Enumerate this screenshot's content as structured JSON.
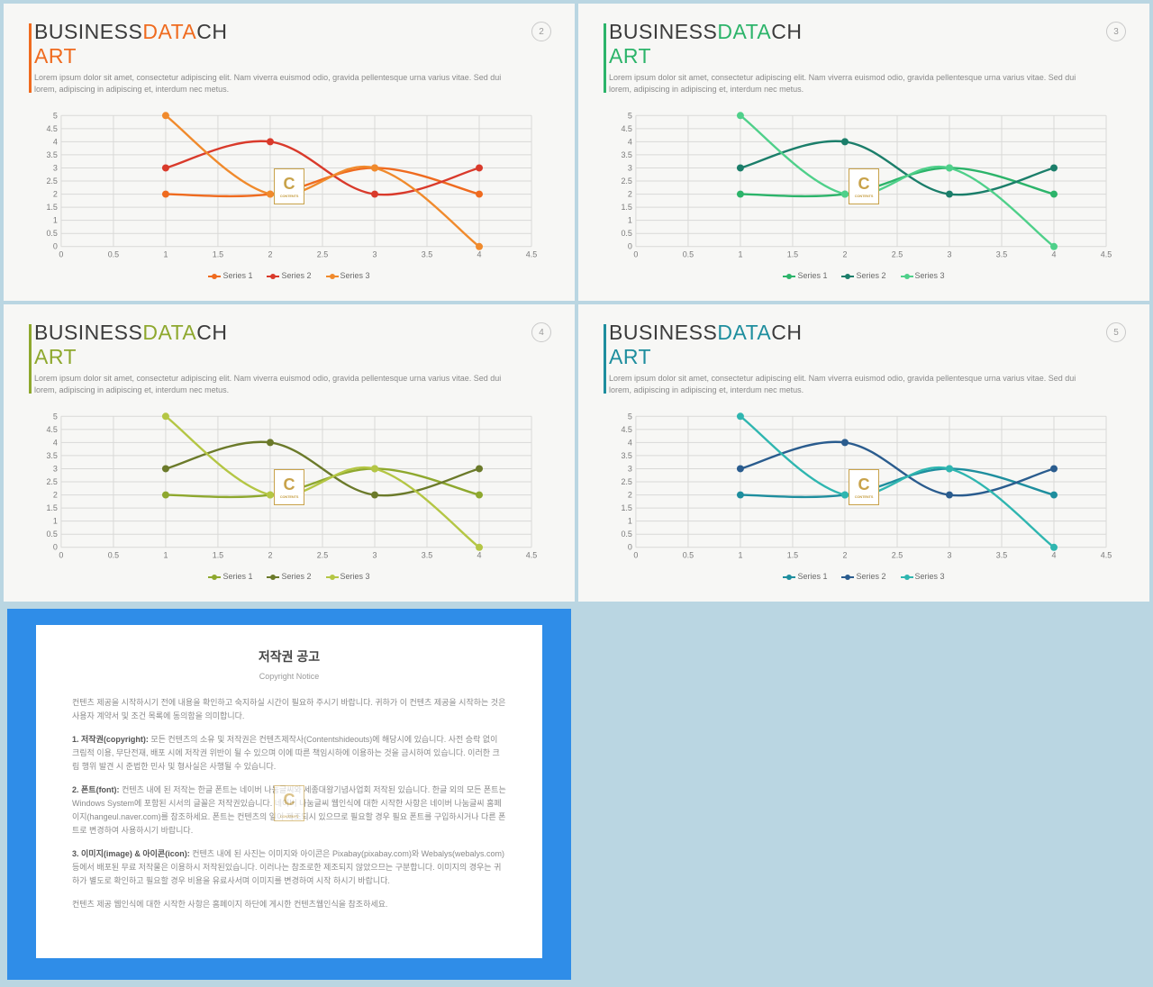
{
  "bg_color": "#bad6e2",
  "slide_bg": "#f7f7f5",
  "grid_color": "#d9d9d7",
  "axis_text_color": "#7a7a7a",
  "title_words": [
    "BUSINESS",
    "DATA",
    "CHART"
  ],
  "title_word1_color": "#3b3b3b",
  "title_fontsize": 23,
  "subtitle": "Lorem ipsum dolor sit amet, consectetur adipiscing elit. Nam viverra euismod odio, gravida pellentesque urna varius vitae. Sed dui lorem, adipiscing in adipiscing et, interdum nec metus.",
  "chart": {
    "type": "line",
    "xlim": [
      0,
      4.5
    ],
    "ylim": [
      0,
      5
    ],
    "xtick_step": 0.5,
    "ytick_step": 0.5,
    "series": [
      {
        "name": "Series 1",
        "x": [
          1,
          2,
          3,
          4
        ],
        "y": [
          2.0,
          2.0,
          3.0,
          2.0
        ]
      },
      {
        "name": "Series 2",
        "x": [
          1,
          2,
          3,
          4
        ],
        "y": [
          3.0,
          4.0,
          2.0,
          3.0
        ]
      },
      {
        "name": "Series 3",
        "x": [
          1,
          2,
          3,
          4
        ],
        "y": [
          5.0,
          2.0,
          3.0,
          0.0
        ]
      }
    ],
    "line_width": 2.4,
    "marker_radius": 4
  },
  "slides": [
    {
      "page": "2",
      "accent": "#ef6b1f",
      "series_colors": [
        "#ef6b1f",
        "#d93a2b",
        "#f08a2c"
      ]
    },
    {
      "page": "3",
      "accent": "#2cb46a",
      "series_colors": [
        "#2cb46a",
        "#1b7e6a",
        "#4fd08a"
      ]
    },
    {
      "page": "4",
      "accent": "#8ea82e",
      "series_colors": [
        "#8ea82e",
        "#6b7a2a",
        "#b4c644"
      ]
    },
    {
      "page": "5",
      "accent": "#1e8e9e",
      "series_colors": [
        "#1e8e9e",
        "#2a5c8e",
        "#2fb6b0"
      ]
    }
  ],
  "copyright": {
    "outer_color": "#2f8de8",
    "title": "저작권 공고",
    "subtitle": "Copyright Notice",
    "paragraphs": [
      "컨텐츠 제공을 시작하시기 전에 내용을 확인하고 숙지하실 시간이 필요하 주시기 바랍니다. 귀하가 이 컨텐츠 제공을 시작하는 것은 사용자 계약서 및 조건 목록에 동의함을 의미합니다.",
      "<b>1. 저작권(copyright):</b> 모든 컨텐츠의 소유 및 저작권은 컨텐츠제작사(Contentshideouts)에 해당시에 있습니다. 사전 승락 없이 크림적 이용, 무단전재, 배포 시에 저작권 위반이 될 수 있으며 이에 따른 책임시하에 이용하는 것을 금시하여 있습니다. 이러한 크림 행위 발견 시 준법한 민사 및 형사실은 사행될 수 있습니다.",
      "<b>2. 폰트(font):</b> 컨텐츠 내에 된 저작는 한글 폰트는 네이버 나눔글씨와 세종대왕기념사업회 저작된 있습니다. 한글 외의 모든 폰트는 Windows System에 포함된 시서의 글꼴은 저작권있습니다. 네이버 나눔글씨 웹인식에 대한 시작한 사항은 네이버 나눔글씨 홈페이지(hangeul.naver.com)를 참조하세요. 폰트는 컨텐츠의 일이 제조되시 있으므로 필요할 경우 필요 폰트를 구입하시거나 다른 폰트로 변경하여 사용하시기 바랍니다.",
      "<b>3. 이미지(image) &amp; 아이콘(icon):</b> 컨텐츠 내에 된 사진는 이미지와 아이콘은 Pixabay(pixabay.com)와 Webalys(webalys.com) 등에서 배포된 무료 저작물은 이용하시 저작된있습니다. 이러나는 참조로한 제조되지 않았으므는 구분합니다. 이미지의 경우는 귀하가 별도로 확인하고 필요할 경우 비용을 유료사서며 이미지를 변경하여 시작 하시기 바랍니다.",
      "컨텐츠 제공 웹인식에 대한 시작한 사항은 홈페이지 하단에 게시한 컨텐츠웹인식을 참조하세요."
    ]
  }
}
